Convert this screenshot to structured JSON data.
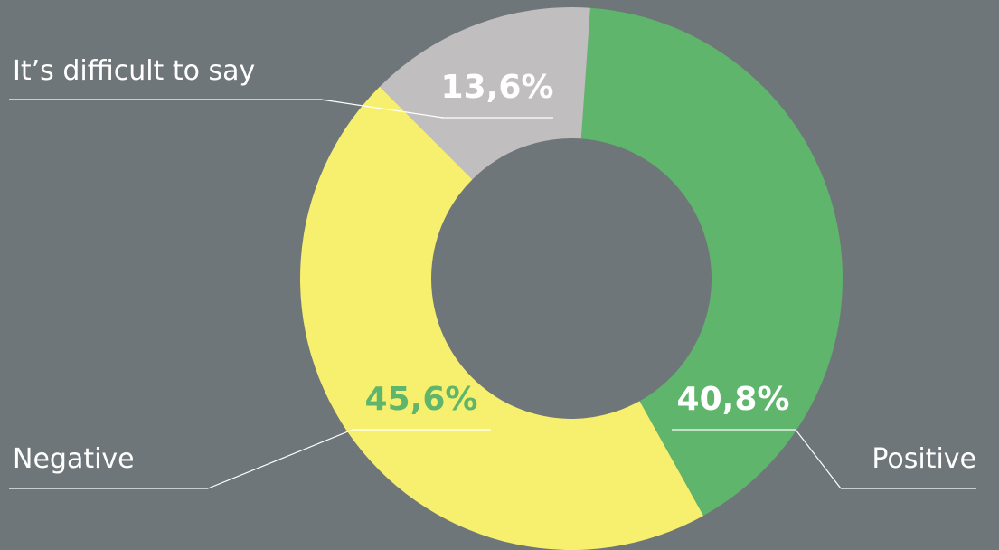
{
  "chart_data": {
    "type": "donut",
    "categories": [
      "Positive",
      "Negative",
      "It’s difficult to say"
    ],
    "values": [
      40.8,
      45.6,
      13.6
    ],
    "value_labels": [
      "40,8%",
      "45,6%",
      "13,6%"
    ],
    "colors": [
      "#5fb56b",
      "#f7f06e",
      "#c0bebf"
    ],
    "value_label_colors": [
      "#ffffff",
      "#5fb56b",
      "#ffffff"
    ]
  }
}
